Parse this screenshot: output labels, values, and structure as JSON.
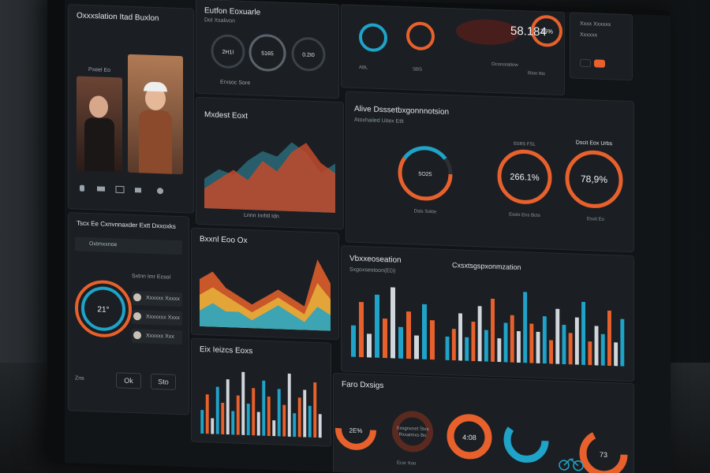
{
  "colors": {
    "accent_blue": "#1fa3c9",
    "accent_orange": "#e8612c",
    "accent_yellow": "#e8b339",
    "panel": "#1b1f23"
  },
  "video_panel": {
    "title": "Oxxxslation Itad Buxlon",
    "caption": "Pxeel Eo",
    "icons": [
      "mic-icon",
      "camera-icon",
      "screen-share-icon",
      "chat-icon",
      "end-call-icon"
    ]
  },
  "gauges_top": {
    "title": "Eutfon Eoxuarle",
    "subtitle": "Dol Xsalivon",
    "values": [
      "2H1I",
      "5165",
      "0.2I0"
    ],
    "caption": "Erxsoc Sore"
  },
  "map_panel": {
    "big_number": "58.184",
    "gauge_value": "36%",
    "labels": [
      "ABL",
      "SBS",
      "Oconoratiow",
      "Rinn 6tx"
    ]
  },
  "account_panel": {
    "lines": [
      "Xxxx Xxxxxx",
      "Xxxxxx"
    ]
  },
  "market_panel": {
    "title": "Mxdest Eoxt",
    "legend": "Lnnn Inrhtl Idn"
  },
  "alive_panel": {
    "title": "Alive Dsssetbxgonnnotsion",
    "subtitle": "Atoxhailed Uitex Etlt",
    "g1_label": "5O25",
    "g2_value": "266.1%",
    "g2_label": "E0R5 FSL",
    "g3_value": "78,9%",
    "g3_label": "Dscit Eox Urbs",
    "caption": "Dsts Sxkte",
    "footer": "Essls Ens Bcts",
    "legend": "Esxit Eo"
  },
  "clock_panel": {
    "title": "Tscx Ee Cxnvnnaxder Extt Dxxoxks",
    "value": "21°",
    "tab": "Oxtmxxnoe",
    "header": "Sxtnn Imr Ecsol",
    "rows": [
      "Xxxxxx Xxxxx",
      "Xxxxxxx Xxxx",
      "Xxxxxx Xxx"
    ],
    "buttons": [
      "Ok",
      "Sto"
    ],
    "footer": "Zns"
  },
  "area_panel": {
    "title": "Bxxnl Eoo Ox"
  },
  "bar_small": {
    "title": "Eix Ieizcs Eoxs"
  },
  "viz_panel": {
    "title": "Vbxxeoseation",
    "subtitle": "Sxgoxsestoon(ED)",
    "title2": "Cxsxtsgspxonmzation"
  },
  "donut_panel": {
    "title": "Faro Dxsigs",
    "values": [
      "2E%",
      "4:08",
      "73"
    ],
    "labels": [
      "Xxsgnxnet Stxs",
      "Rxxaimxs Bo"
    ],
    "caption": "Ecxr Xoo"
  },
  "chart_data": [
    {
      "type": "area",
      "series": [
        {
          "name": "",
          "values": [
            3,
            4,
            3.5,
            5,
            6,
            5.5,
            7,
            6,
            4,
            5
          ]
        },
        {
          "name": "",
          "values": [
            2,
            3,
            4,
            3,
            5,
            4,
            6,
            7,
            5,
            4
          ]
        }
      ]
    },
    {
      "type": "area",
      "series": [
        {
          "name": "",
          "values": [
            6,
            7,
            5,
            4,
            3,
            4,
            5,
            4,
            3,
            9,
            6
          ]
        },
        {
          "name": "",
          "values": [
            4,
            5,
            4,
            3,
            2,
            3,
            4,
            3,
            2,
            6,
            4
          ]
        },
        {
          "name": "",
          "values": [
            2,
            3,
            2,
            2,
            1,
            2,
            3,
            2,
            1,
            3,
            2
          ]
        }
      ]
    },
    {
      "type": "bar",
      "values": [
        3,
        5,
        2,
        6,
        4,
        7,
        3,
        5,
        8,
        4,
        6,
        3,
        7,
        5,
        2,
        6,
        4,
        8,
        3,
        5,
        6,
        4,
        7,
        3
      ]
    },
    {
      "type": "bar",
      "values": [
        4,
        7,
        3,
        8,
        5,
        9,
        4,
        6,
        3,
        7,
        5
      ]
    },
    {
      "type": "bar",
      "values": [
        3,
        4,
        6,
        3,
        5,
        7,
        4,
        8,
        3,
        5,
        6,
        4,
        9,
        5,
        4,
        6,
        3,
        7,
        5,
        4,
        6,
        8,
        3,
        5,
        4,
        7,
        3,
        6
      ]
    }
  ]
}
